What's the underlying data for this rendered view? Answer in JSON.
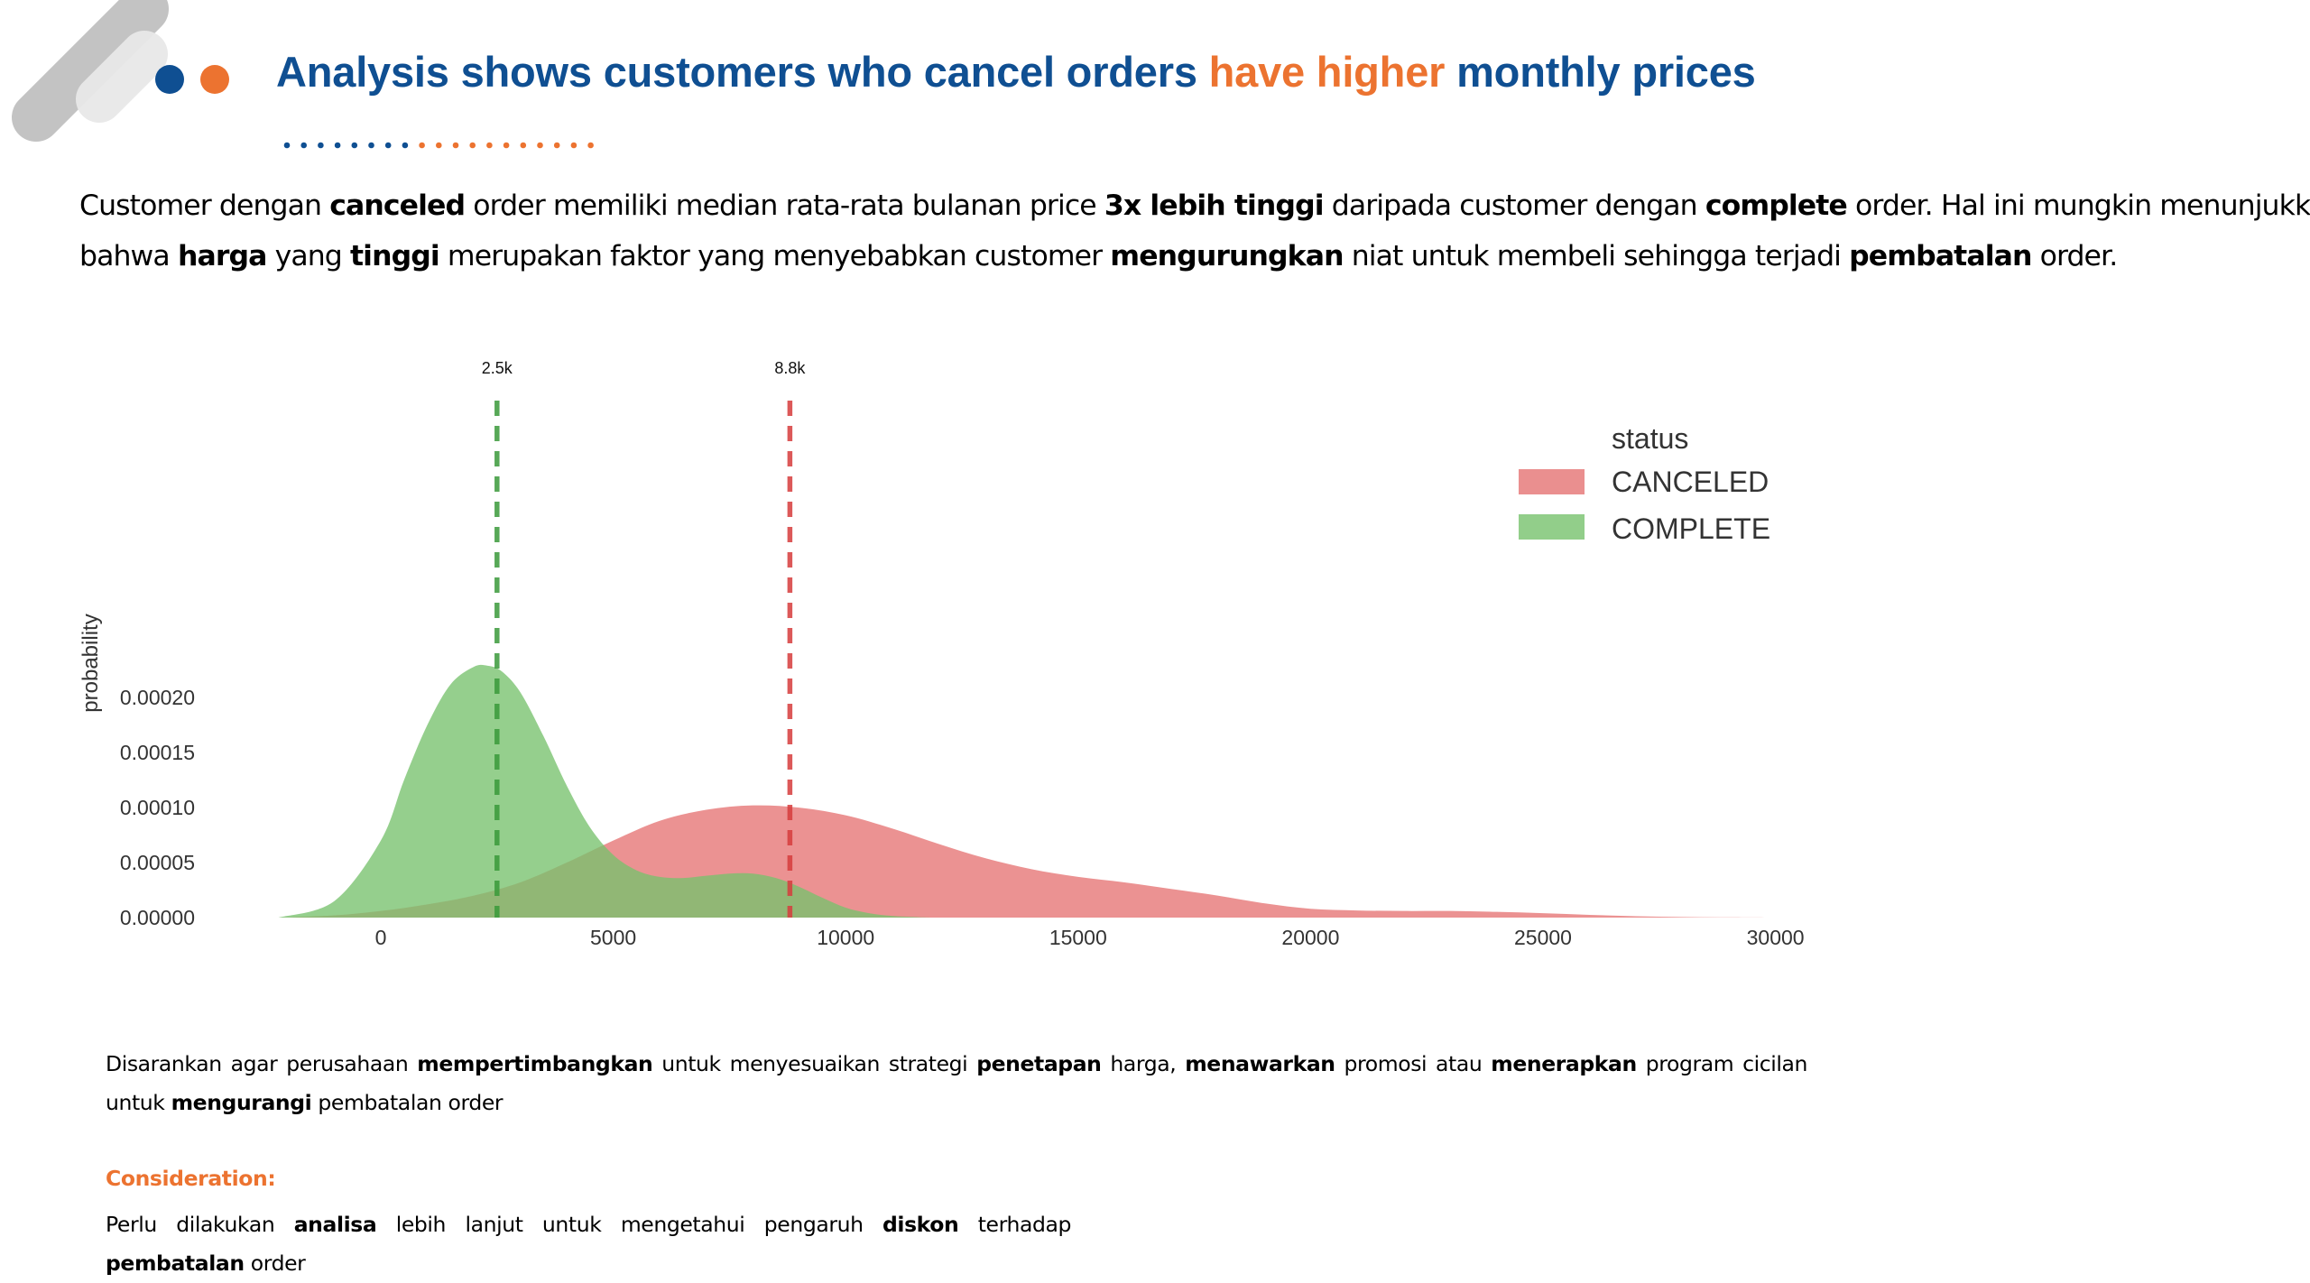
{
  "colors": {
    "title_blue": "#0f4f92",
    "accent_orange": "#ec7330",
    "deco_gray": "#c3c3c3",
    "deco_light": "#e8e8e8",
    "canceled_fill": "#e57373",
    "complete_fill": "#77c26d",
    "canceled_line": "#d63d3d",
    "complete_line": "#3a9a3a"
  },
  "header": {
    "icons": [
      "pill-decoration-icon",
      "blue-dot-icon",
      "orange-dot-icon",
      "dotted-divider-icon"
    ],
    "title_parts": [
      {
        "text": "Analysis shows customers who cancel orders ",
        "color": "blue"
      },
      {
        "text": "have higher",
        "color": "orange"
      },
      {
        "text": " monthly prices",
        "color": "blue"
      }
    ]
  },
  "intro": {
    "segments": [
      {
        "t": "Customer dengan ",
        "b": false
      },
      {
        "t": "canceled",
        "b": true
      },
      {
        "t": " order memiliki median rata-rata bulanan price ",
        "b": false
      },
      {
        "t": "3x lebih tinggi",
        "b": true
      },
      {
        "t": " daripada customer dengan ",
        "b": false
      },
      {
        "t": "complete",
        "b": true
      },
      {
        "t": " order. Hal ini mungkin menunjukkan",
        "b": false
      },
      {
        "t": "\n",
        "b": false
      },
      {
        "t": "bahwa ",
        "b": false
      },
      {
        "t": "harga",
        "b": true
      },
      {
        "t": " yang ",
        "b": false
      },
      {
        "t": "tinggi",
        "b": true
      },
      {
        "t": " merupakan faktor yang menyebabkan customer ",
        "b": false
      },
      {
        "t": "mengurungkan",
        "b": true
      },
      {
        "t": " niat untuk membeli sehingga terjadi ",
        "b": false
      },
      {
        "t": "pembatalan",
        "b": true
      },
      {
        "t": " order.",
        "b": false
      }
    ]
  },
  "chart_data": {
    "type": "area",
    "ylabel": "probability",
    "xlim": [
      -2200,
      30000
    ],
    "ylim": [
      0,
      0.000235
    ],
    "x_ticks": [
      0,
      5000,
      10000,
      15000,
      20000,
      25000,
      30000
    ],
    "x_tick_labels": [
      "0",
      "5000",
      "10000",
      "15000",
      "20000",
      "25000",
      "30000"
    ],
    "y_ticks": [
      0,
      5e-05,
      0.0001,
      0.00015,
      0.0002
    ],
    "y_tick_labels": [
      "0.00000",
      "0.00005",
      "0.00010",
      "0.00015",
      "0.00020"
    ],
    "grid": false,
    "legend_title": "status",
    "legend_position": "top-right",
    "series": [
      {
        "name": "CANCELED",
        "color": "#e57373",
        "x": [
          -2200,
          -1000,
          0,
          1000,
          2000,
          3000,
          4000,
          5000,
          6000,
          7000,
          8000,
          9000,
          10000,
          11000,
          12000,
          13000,
          14000,
          15000,
          16000,
          17000,
          18000,
          19000,
          20000,
          21000,
          22000,
          23000,
          24000,
          25000,
          26000,
          27000,
          28000,
          29000,
          30000
        ],
        "y": [
          0,
          2e-06,
          6e-06,
          1.2e-05,
          2e-05,
          3.2e-05,
          5e-05,
          7e-05,
          8.8e-05,
          9.8e-05,
          0.000102,
          0.0001,
          9.3e-05,
          8.1e-05,
          6.7e-05,
          5.4e-05,
          4.4e-05,
          3.7e-05,
          3.2e-05,
          2.6e-05,
          2e-05,
          1.3e-05,
          8e-06,
          6.5e-06,
          6e-06,
          6e-06,
          5.2e-06,
          4e-06,
          2.5e-06,
          1.2e-06,
          5e-07,
          2e-07,
          0
        ]
      },
      {
        "name": "COMPLETE",
        "color": "#77c26d",
        "x": [
          -2200,
          -1000,
          0,
          500,
          1000,
          1500,
          2000,
          2300,
          2600,
          3000,
          3500,
          4000,
          4500,
          5000,
          5500,
          6000,
          6500,
          7000,
          7500,
          8000,
          8500,
          9000,
          9500,
          10000,
          10500,
          11000,
          11500,
          12000,
          13000,
          15000,
          30000
        ],
        "y": [
          0,
          1.5e-05,
          7e-05,
          0.000125,
          0.000175,
          0.000212,
          0.000228,
          0.000229,
          0.000224,
          0.000205,
          0.000165,
          0.00012,
          8.2e-05,
          5.7e-05,
          4.3e-05,
          3.7e-05,
          3.6e-05,
          3.8e-05,
          4e-05,
          4e-05,
          3.6e-05,
          2.8e-05,
          1.8e-05,
          9e-06,
          4e-06,
          1.5e-06,
          5e-07,
          0,
          0,
          0,
          0
        ]
      }
    ],
    "medians": [
      {
        "series": "COMPLETE",
        "x": 2500,
        "label": "2.5k",
        "color": "#3a9a3a"
      },
      {
        "series": "CANCELED",
        "x": 8800,
        "label": "8.8k",
        "color": "#d63d3d"
      }
    ]
  },
  "recommendation": {
    "segments": [
      {
        "t": "Disarankan agar perusahaan ",
        "b": false
      },
      {
        "t": "mempertimbangkan",
        "b": true
      },
      {
        "t": " untuk menyesuaikan strategi ",
        "b": false
      },
      {
        "t": "penetapan",
        "b": true
      },
      {
        "t": " harga, ",
        "b": false
      },
      {
        "t": "menawarkan",
        "b": true
      },
      {
        "t": " promosi atau ",
        "b": false
      },
      {
        "t": "menerapkan",
        "b": true
      },
      {
        "t": " program cicilan untuk ",
        "b": false
      },
      {
        "t": "mengurangi",
        "b": true
      },
      {
        "t": " pembatalan order",
        "b": false
      }
    ]
  },
  "consideration": {
    "label": "Consideration:",
    "segments": [
      {
        "t": "Perlu dilakukan ",
        "b": false
      },
      {
        "t": "analisa",
        "b": true
      },
      {
        "t": " lebih lanjut untuk mengetahui pengaruh ",
        "b": false
      },
      {
        "t": "diskon",
        "b": true
      },
      {
        "t": " terhadap ",
        "b": false
      },
      {
        "t": "pembatalan",
        "b": true
      },
      {
        "t": " order",
        "b": false
      }
    ]
  }
}
